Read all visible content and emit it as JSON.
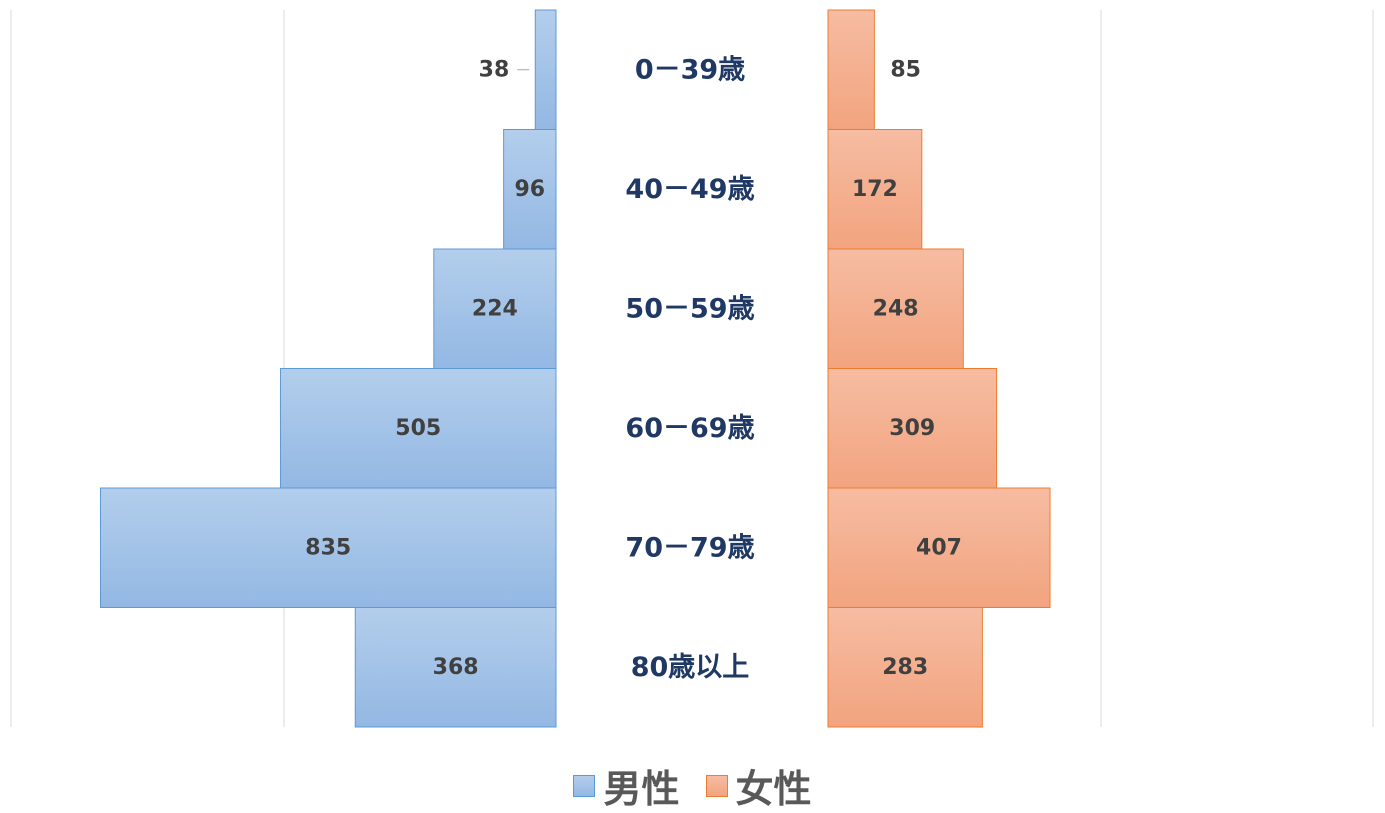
{
  "chart_data": {
    "type": "bar",
    "orientation": "horizontal",
    "layout": "population-pyramid",
    "categories": [
      "0－39歳",
      "40－49歳",
      "50－59歳",
      "60－69歳",
      "70－79歳",
      "80歳以上"
    ],
    "series": [
      {
        "name": "男性",
        "values": [
          38,
          96,
          224,
          505,
          835,
          368
        ],
        "color": "#9DC0E8",
        "border": "#5B9BD5",
        "side": "left"
      },
      {
        "name": "女性",
        "values": [
          85,
          172,
          248,
          309,
          407,
          283
        ],
        "color": "#F4B090",
        "border": "#ED7D31",
        "side": "right"
      }
    ],
    "xlim": [
      0,
      1000
    ],
    "grid": true,
    "legend_position": "bottom",
    "category_label_color": "#1F3864",
    "data_label_color": "#404040"
  },
  "legend": {
    "male": "男性",
    "female": "女性"
  }
}
